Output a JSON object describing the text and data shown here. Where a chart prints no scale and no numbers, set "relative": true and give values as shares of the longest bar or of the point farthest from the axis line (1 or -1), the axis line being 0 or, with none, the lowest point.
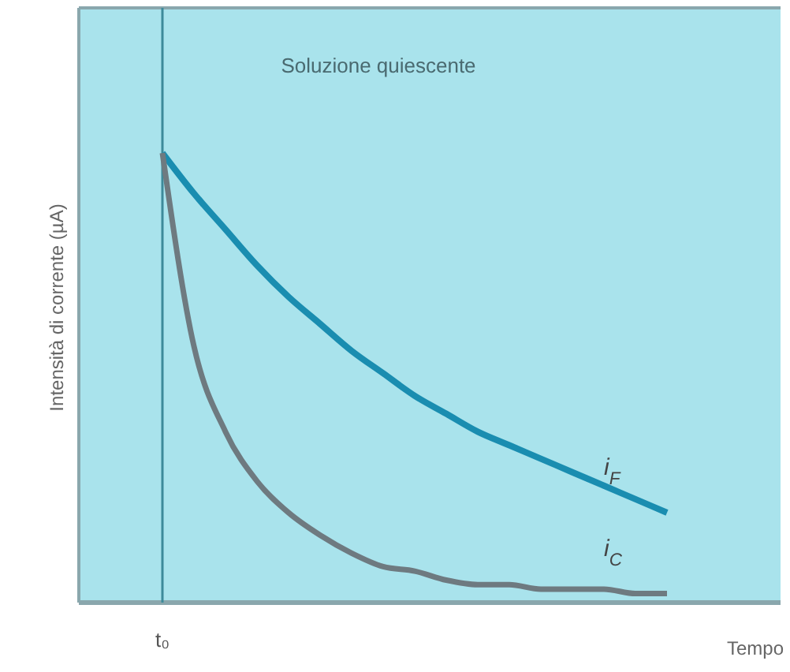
{
  "chart_data": {
    "type": "line",
    "title": "Soluzione quiescente",
    "xlabel": "Tempo",
    "ylabel": "Intensità di corrente (µA)",
    "relative": true,
    "categories": [
      null,
      null,
      null,
      null,
      null,
      null,
      null,
      null,
      null,
      null,
      null,
      null,
      null,
      null,
      null,
      null,
      null
    ],
    "series": [
      {
        "name": "i$_{F}$",
        "color": "#1a8db0",
        "values": [
          1,
          0.91,
          0.83,
          0.75,
          0.68,
          0.62,
          0.56,
          0.51,
          0.46,
          0.42,
          0.38,
          0.35,
          0.32,
          0.29,
          0.26,
          0.23,
          0.2
        ]
      },
      {
        "name": "i$_{C}$",
        "color": "#6e7a80",
        "values": [
          1,
          0.57,
          0.38,
          0.27,
          0.2,
          0.15,
          0.11,
          0.08,
          0.07,
          0.05,
          0.04,
          0.04,
          0.03,
          0.03,
          0.03,
          0.02,
          0.02
        ]
      }
    ],
    "annotations": [
      "t₀"
    ],
    "marker": "none",
    "line_style": "solid"
  }
}
